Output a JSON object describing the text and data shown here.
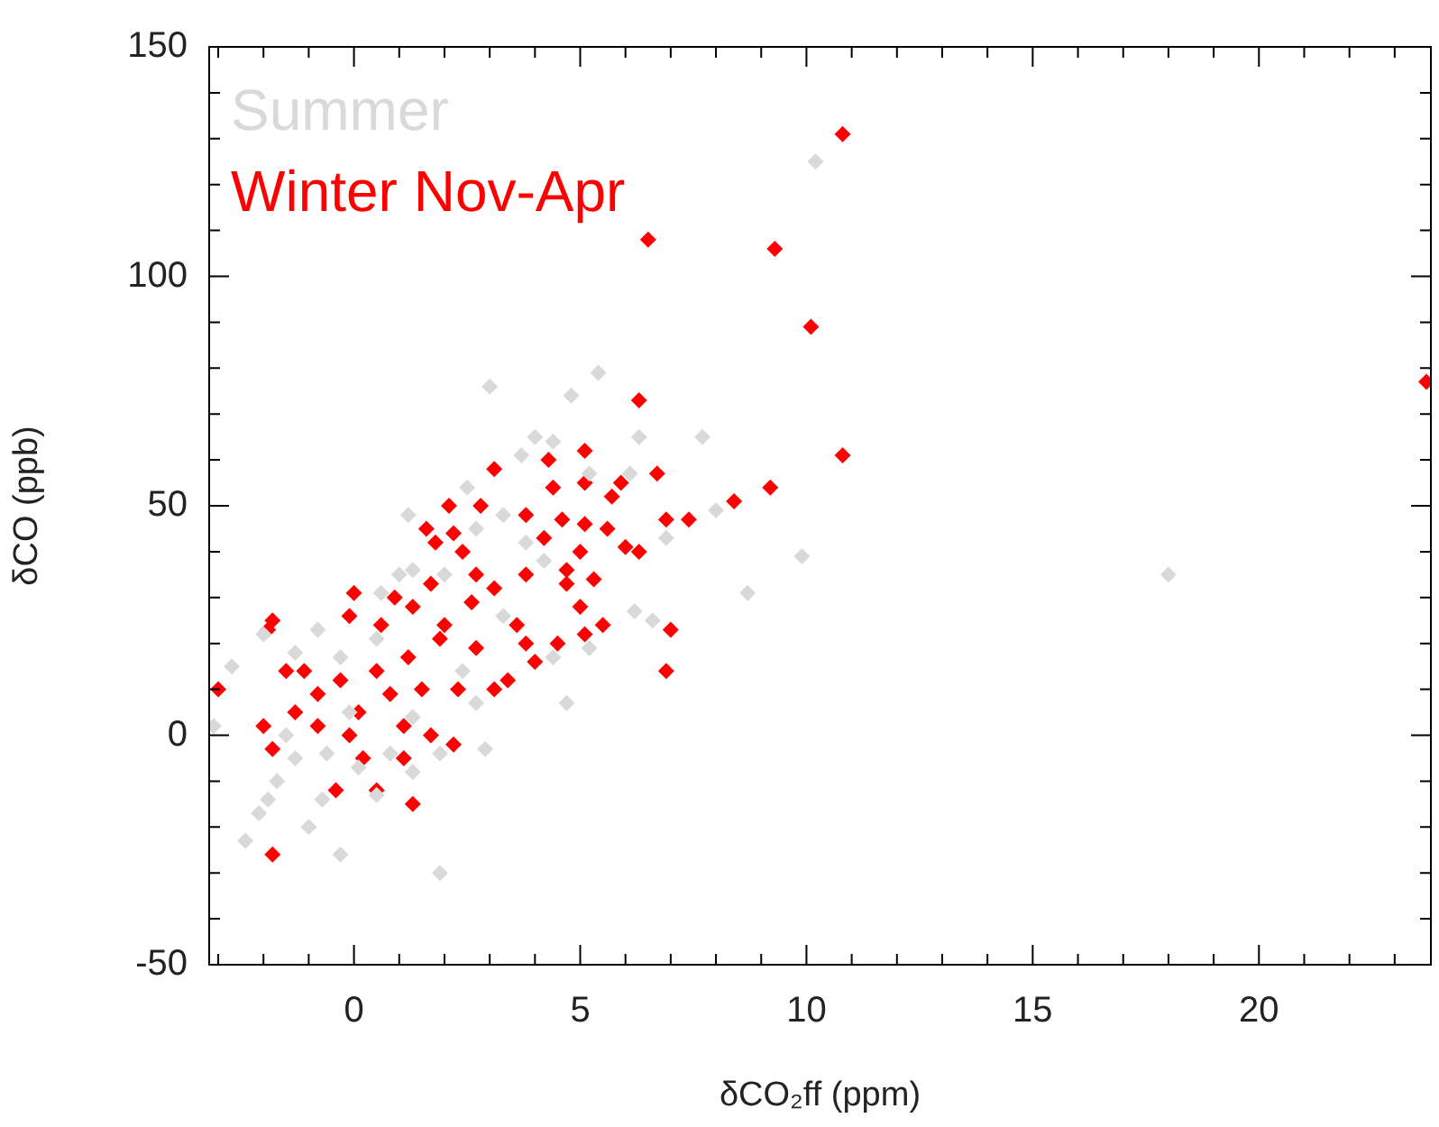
{
  "chart_data": {
    "type": "scatter",
    "xlabel": "δCO₂ff (ppm)",
    "ylabel": "δCO (ppb)",
    "xlim": [
      -3.2,
      23.8
    ],
    "ylim": [
      -50,
      150
    ],
    "xticks": [
      {
        "value": -3,
        "label": null
      },
      {
        "value": -2,
        "label": null
      },
      {
        "value": -1,
        "label": null
      },
      0,
      {
        "value": 1,
        "label": null
      },
      {
        "value": 2,
        "label": null
      },
      {
        "value": 3,
        "label": null
      },
      {
        "value": 4,
        "label": null
      },
      5,
      {
        "value": 6,
        "label": null
      },
      {
        "value": 7,
        "label": null
      },
      {
        "value": 8,
        "label": null
      },
      {
        "value": 9,
        "label": null
      },
      10,
      {
        "value": 11,
        "label": null
      },
      {
        "value": 12,
        "label": null
      },
      {
        "value": 13,
        "label": null
      },
      {
        "value": 14,
        "label": null
      },
      15,
      {
        "value": 16,
        "label": null
      },
      {
        "value": 17,
        "label": null
      },
      {
        "value": 18,
        "label": null
      },
      {
        "value": 19,
        "label": null
      },
      20,
      {
        "value": 21,
        "label": null
      },
      {
        "value": 22,
        "label": null
      },
      {
        "value": 23,
        "label": null
      }
    ],
    "yticks": [
      -50,
      {
        "value": -40,
        "label": null
      },
      {
        "value": -30,
        "label": null
      },
      {
        "value": -20,
        "label": null
      },
      {
        "value": -10,
        "label": null
      },
      0,
      {
        "value": 10,
        "label": null
      },
      {
        "value": 20,
        "label": null
      },
      {
        "value": 30,
        "label": null
      },
      {
        "value": 40,
        "label": null
      },
      50,
      {
        "value": 60,
        "label": null
      },
      {
        "value": 70,
        "label": null
      },
      {
        "value": 80,
        "label": null
      },
      {
        "value": 90,
        "label": null
      },
      100,
      {
        "value": 110,
        "label": null
      },
      {
        "value": 120,
        "label": null
      },
      {
        "value": 130,
        "label": null
      },
      {
        "value": 140,
        "label": null
      },
      150
    ],
    "grid": false,
    "legend": "top left",
    "marker": "diamond",
    "series": [
      {
        "name": "Summer",
        "color": "#d9d9d9",
        "x": [
          10.2,
          3.0,
          5.4,
          4.8,
          6.3,
          7.7,
          4.0,
          4.4,
          3.7,
          2.5,
          1.2,
          6.1,
          5.2,
          8.0,
          6.9,
          9.9,
          8.7,
          18.0,
          6.2,
          6.6,
          5.2,
          4.7,
          2.9,
          1.9,
          -0.3,
          -1.0,
          -2.4,
          -2.1,
          -1.9,
          -1.7,
          -0.7,
          0.5,
          1.3,
          -1.3,
          -2.7,
          -3.1,
          -2.0,
          -0.8,
          -1.3,
          1.0,
          0.6,
          1.3,
          2.0,
          2.7,
          3.3,
          3.8,
          4.2,
          4.4,
          2.7,
          1.9,
          0.1,
          -0.6,
          -1.5,
          2.4,
          3.3,
          -0.3,
          0.5,
          1.3,
          0.8,
          -0.1
        ],
        "values": [
          125,
          76,
          79,
          74,
          65,
          65,
          65,
          64,
          61,
          54,
          48,
          57,
          57,
          49,
          43,
          39,
          31,
          35,
          27,
          25,
          19,
          7,
          -3,
          -30,
          -26,
          -20,
          -23,
          -17,
          -14,
          -10,
          -14,
          -13,
          -8,
          -5,
          15,
          2,
          22,
          23,
          18,
          35,
          31,
          36,
          35,
          45,
          48,
          42,
          38,
          17,
          7,
          -4,
          -7,
          -4,
          0,
          14,
          26,
          17,
          21,
          4,
          -4,
          5
        ]
      },
      {
        "name": "Winter Nov-Apr",
        "color": "#ff0000",
        "x": [
          10.8,
          6.5,
          9.3,
          10.1,
          23.7,
          10.8,
          6.3,
          9.2,
          8.4,
          6.7,
          6.9,
          7.4,
          5.1,
          4.3,
          3.1,
          5.1,
          4.4,
          5.9,
          5.7,
          2.8,
          2.1,
          3.8,
          4.6,
          1.6,
          2.2,
          1.8,
          5.1,
          5.6,
          6.3,
          6.0,
          4.2,
          5.0,
          0.0,
          1.7,
          0.9,
          3.1,
          4.7,
          5.3,
          4.7,
          3.8,
          2.4,
          2.7,
          -0.1,
          5.0,
          5.5,
          5.1,
          7.0,
          6.9,
          4.5,
          3.8,
          3.4,
          3.1,
          2.3,
          -1.8,
          -1.9,
          -3.0,
          -2.0,
          -1.8,
          -1.8,
          -0.4,
          0.5,
          1.3,
          1.1,
          2.2,
          0.2,
          1.7,
          2.7,
          1.9,
          1.2,
          0.5,
          -0.3,
          -0.8,
          -1.3,
          -1.5,
          0.1,
          0.8,
          1.5,
          1.1,
          -0.1,
          -0.8,
          0.6,
          1.3,
          2.0,
          2.6,
          3.6,
          4.0,
          -1.1
        ],
        "values": [
          131,
          108,
          106,
          89,
          77,
          61,
          73,
          54,
          51,
          57,
          47,
          47,
          62,
          60,
          58,
          55,
          54,
          55,
          52,
          50,
          50,
          48,
          47,
          45,
          44,
          42,
          46,
          45,
          40,
          41,
          43,
          40,
          31,
          33,
          30,
          32,
          36,
          34,
          33,
          35,
          40,
          35,
          26,
          28,
          24,
          22,
          23,
          14,
          20,
          20,
          12,
          10,
          10,
          25,
          23,
          10,
          2,
          -3,
          -26,
          -12,
          -12,
          -15,
          -5,
          -2,
          -5,
          0,
          19,
          21,
          17,
          14,
          12,
          9,
          5,
          14,
          5,
          9,
          10,
          2,
          0,
          2,
          24,
          28,
          24,
          29,
          24,
          16,
          14
        ]
      }
    ]
  }
}
